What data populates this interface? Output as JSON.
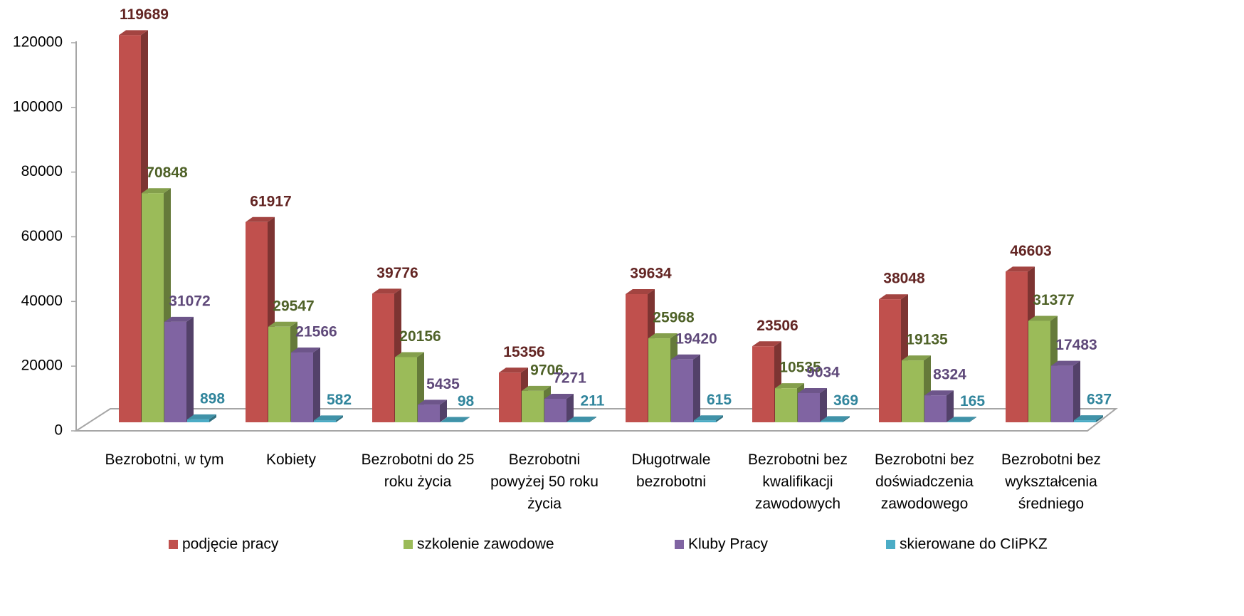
{
  "chart_data": {
    "type": "bar3d",
    "categories": [
      "Bezrobotni, w tym",
      "Kobiety",
      "Bezrobotni do 25 roku życia",
      "Bezrobotni powyżej 50 roku życia",
      "Długotrwale bezrobotni",
      "Bezrobotni bez kwalifikacji zawodowych",
      "Bezrobotni bez doświadczenia zawodowego",
      "Bezrobotni bez wykształcenia średniego"
    ],
    "series": [
      {
        "name": "podjęcie pracy",
        "color": "#c0504d",
        "label_color": "#632523",
        "values": [
          119689,
          61917,
          39776,
          15356,
          39634,
          23506,
          38048,
          46603
        ]
      },
      {
        "name": "szkolenie zawodowe",
        "color": "#9bbb59",
        "label_color": "#4f6228",
        "values": [
          70848,
          29547,
          20156,
          9706,
          25968,
          10535,
          19135,
          31377
        ]
      },
      {
        "name": "Kluby Pracy",
        "color": "#8064a2",
        "label_color": "#5f497a",
        "values": [
          31072,
          21566,
          5435,
          7271,
          19420,
          9034,
          8324,
          17483
        ]
      },
      {
        "name": "skierowane do CIiPKZ",
        "color": "#4bacc6",
        "label_color": "#31859c",
        "values": [
          898,
          582,
          98,
          211,
          615,
          369,
          165,
          637
        ]
      }
    ],
    "ylim": [
      0,
      120000
    ],
    "yticks": [
      0,
      20000,
      40000,
      60000,
      80000,
      100000,
      120000
    ],
    "legend": "bottom"
  }
}
